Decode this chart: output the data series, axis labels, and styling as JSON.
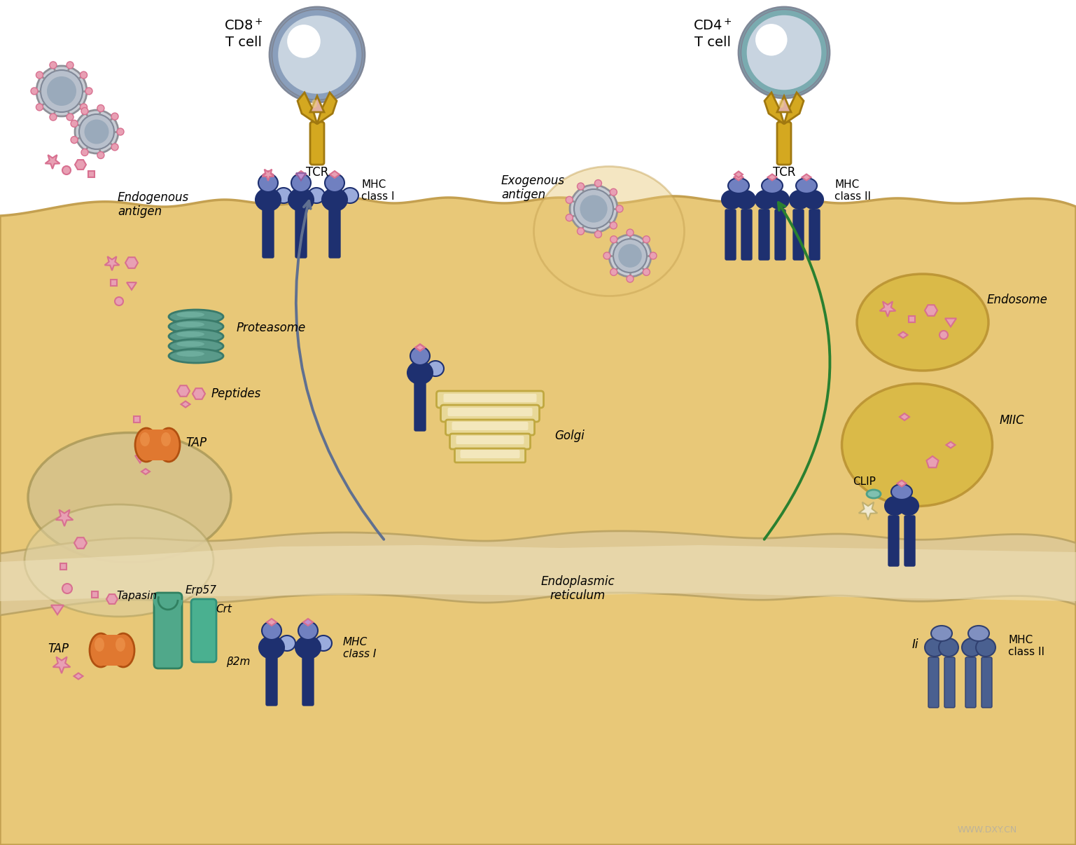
{
  "labels": {
    "cd8_tcell": "CD8$^+$\nT cell",
    "cd4_tcell": "CD4$^+$\nT cell",
    "tcr1": "TCR",
    "tcr2": "TCR",
    "mhc_classI_top": "MHC\nclass I",
    "mhc_classII_top": "MHC\nclass II",
    "endogenous_antigen": "Endogenous\nantigen",
    "exogenous_antigen": "Exogenous\nantigen",
    "proteasome": "Proteasome",
    "peptides": "Peptides",
    "tap1": "TAP",
    "tap2": "TAP",
    "erp57": "Erp57",
    "tapasin": "Tapasin",
    "crt": "Crt",
    "b2m": "β2m",
    "mhc_classI_bot": "MHC\nclass I",
    "mhc_classII_bot": "MHC\nclass II",
    "endoplasmic_reticulum": "Endoplasmic\nreticulum",
    "golgi": "Golgi",
    "endosome": "Endosome",
    "miic": "MIIC",
    "clip": "CLIP",
    "ii": "Ii",
    "watermark": "WWW.DXY.CN"
  },
  "colors": {
    "cell_blue": "#8a9fbc",
    "cell_teal": "#7aabb0",
    "cell_bg": "#e8c878",
    "cell_edge": "#c4a050",
    "tcr_gold": "#d4a820",
    "tcr_edge": "#a07810",
    "mhc_dark": "#1e3070",
    "mhc_mid": "#3a5090",
    "mhc_light": "#7080c0",
    "mhc_pale": "#9aabdc",
    "peptide_pink": "#d87090",
    "peptide_fill": "#e8a0b4",
    "proteasome_teal": "#5a9a8a",
    "proteasome_edge": "#3a7a6a",
    "tap_orange": "#e07830",
    "tap_highlight": "#f09850",
    "tapasin_teal": "#50a88a",
    "crt_teal": "#4ab090",
    "arrow_blue": "#607090",
    "arrow_green": "#2a8030",
    "organelle_bg": "#d8b840",
    "organelle_edge": "#b89030",
    "er_bg": "#ddc898",
    "er_edge": "#b8a060",
    "nucleus_bg": "#d0c090",
    "nucleus_edge": "#a09050",
    "white": "#ffffff",
    "black": "#111111",
    "gray_cell": "#a8b8c8",
    "gray_dark": "#808898"
  }
}
